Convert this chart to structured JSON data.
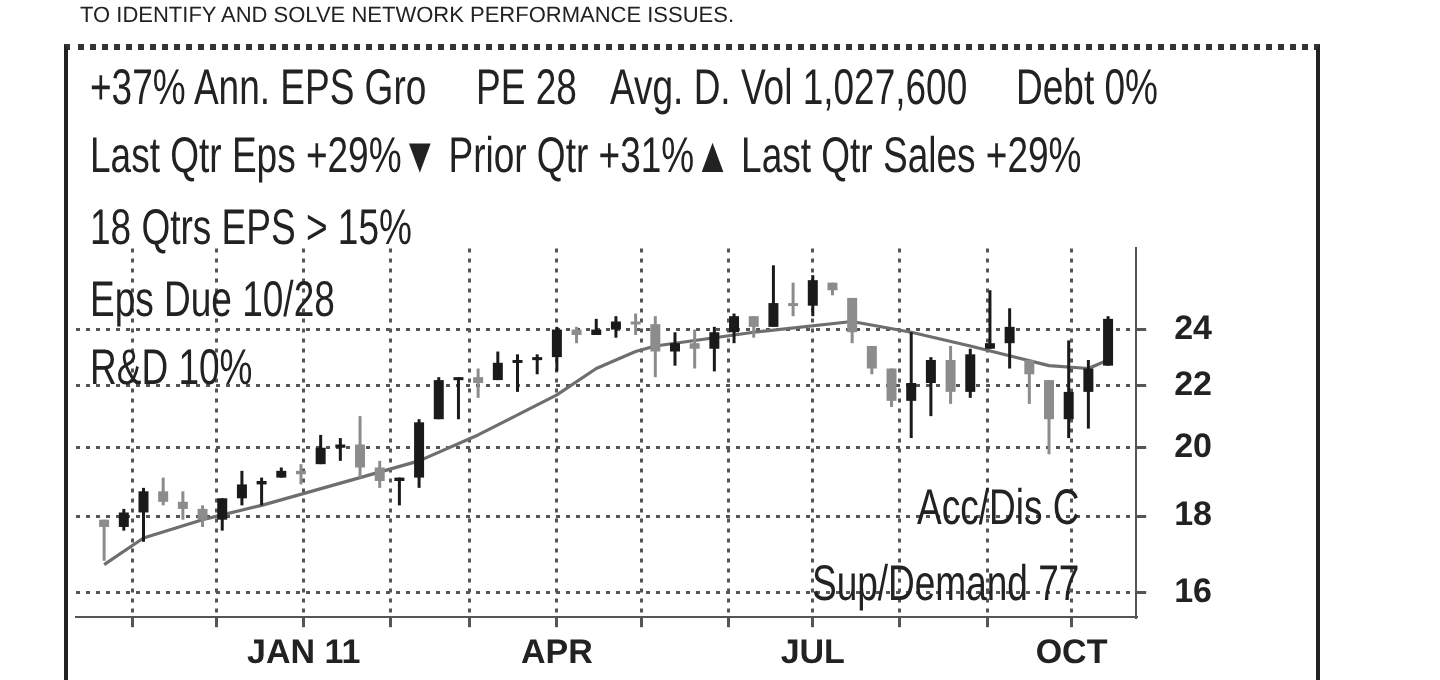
{
  "chart_data": {
    "type": "candlestick",
    "annotations": [
      "TO IDENTIFY AND SOLVE NETWORK PERFORMANCE ISSUES.",
      "+37% Ann. EPS Gro",
      "PE 28",
      "Avg. D. Vol 1,027,600",
      "Debt 0%",
      "Last Qtr Eps +29%▼ Prior Qtr +31%▲ Last Qtr Sales +29%",
      "18 Qtrs EPS > 15%",
      "Eps Due 10/28",
      "R&D 10%",
      "Acc/Dis C",
      "Sup/Demand 77"
    ],
    "x": [
      "2010-10-22",
      "2010-10-29",
      "2010-11-05",
      "2010-11-12",
      "2010-11-19",
      "2010-11-26",
      "2010-12-03",
      "2010-12-10",
      "2010-12-17",
      "2010-12-24",
      "2010-12-31",
      "2011-01-07",
      "2011-01-14",
      "2011-01-21",
      "2011-01-28",
      "2011-02-04",
      "2011-02-11",
      "2011-02-18",
      "2011-02-25",
      "2011-03-04",
      "2011-03-11",
      "2011-03-18",
      "2011-03-25",
      "2011-04-01",
      "2011-04-08",
      "2011-04-15",
      "2011-04-22",
      "2011-04-29",
      "2011-05-06",
      "2011-05-13",
      "2011-05-20",
      "2011-05-27",
      "2011-06-03",
      "2011-06-10",
      "2011-06-17",
      "2011-06-24",
      "2011-07-01",
      "2011-07-08",
      "2011-07-15",
      "2011-07-22",
      "2011-07-29",
      "2011-08-05",
      "2011-08-12",
      "2011-08-19",
      "2011-08-26",
      "2011-09-02",
      "2011-09-09",
      "2011-09-16",
      "2011-09-23",
      "2011-09-30",
      "2011-10-07",
      "2011-10-14"
    ],
    "ohlc": [
      [
        17.9,
        17.9,
        16.8,
        17.7
      ],
      [
        17.7,
        18.2,
        17.6,
        18.1
      ],
      [
        18.1,
        18.8,
        17.3,
        18.7
      ],
      [
        18.7,
        19.1,
        18.3,
        18.4
      ],
      [
        18.4,
        18.7,
        17.9,
        18.2
      ],
      [
        18.2,
        18.3,
        17.7,
        17.9
      ],
      [
        17.9,
        18.5,
        17.6,
        18.5
      ],
      [
        18.5,
        19.3,
        18.3,
        18.9
      ],
      [
        18.9,
        19.1,
        18.3,
        19.0
      ],
      [
        19.1,
        19.4,
        19.1,
        19.3
      ],
      [
        19.3,
        19.5,
        18.9,
        19.2
      ],
      [
        19.5,
        20.4,
        19.5,
        20.0
      ],
      [
        20.0,
        20.3,
        19.6,
        20.1
      ],
      [
        20.1,
        21.0,
        19.1,
        19.4
      ],
      [
        19.4,
        19.6,
        18.8,
        19.0
      ],
      [
        19.0,
        19.1,
        18.3,
        19.1
      ],
      [
        19.1,
        20.9,
        18.8,
        20.8
      ],
      [
        20.9,
        22.3,
        20.9,
        22.2
      ],
      [
        22.2,
        22.3,
        20.9,
        22.3
      ],
      [
        22.3,
        22.6,
        21.6,
        22.1
      ],
      [
        22.2,
        23.2,
        22.2,
        22.8
      ],
      [
        22.8,
        23.1,
        21.8,
        22.9
      ],
      [
        22.9,
        23.1,
        22.4,
        23.0
      ],
      [
        23.0,
        24.1,
        22.5,
        24.0
      ],
      [
        24.0,
        24.1,
        23.5,
        23.8
      ],
      [
        23.8,
        24.4,
        23.8,
        24.0
      ],
      [
        24.0,
        24.5,
        23.7,
        24.3
      ],
      [
        24.3,
        24.6,
        23.8,
        24.2
      ],
      [
        24.2,
        24.5,
        22.3,
        23.2
      ],
      [
        23.2,
        23.9,
        22.7,
        23.5
      ],
      [
        23.5,
        24.0,
        22.6,
        23.3
      ],
      [
        23.3,
        24.1,
        22.5,
        23.9
      ],
      [
        23.9,
        24.6,
        23.5,
        24.5
      ],
      [
        24.5,
        24.5,
        23.7,
        24.1
      ],
      [
        24.1,
        26.5,
        24.1,
        25.0
      ],
      [
        25.0,
        25.8,
        24.5,
        24.9
      ],
      [
        24.9,
        26.1,
        24.5,
        25.9
      ],
      [
        25.8,
        25.8,
        25.3,
        25.5
      ],
      [
        25.2,
        25.2,
        23.5,
        23.9
      ],
      [
        23.4,
        23.4,
        22.4,
        22.6
      ],
      [
        22.6,
        22.6,
        21.3,
        21.5
      ],
      [
        21.5,
        23.9,
        20.3,
        22.1
      ],
      [
        22.1,
        23.0,
        21.0,
        22.9
      ],
      [
        22.9,
        23.4,
        21.4,
        21.8
      ],
      [
        21.8,
        23.3,
        21.6,
        23.1
      ],
      [
        23.3,
        25.5,
        23.3,
        23.5
      ],
      [
        23.5,
        24.8,
        22.6,
        24.1
      ],
      [
        22.9,
        22.9,
        21.4,
        22.4
      ],
      [
        22.2,
        22.2,
        19.8,
        20.9
      ],
      [
        20.9,
        23.6,
        20.3,
        21.8
      ],
      [
        21.8,
        22.9,
        20.6,
        22.6
      ],
      [
        22.7,
        24.5,
        22.7,
        24.4
      ]
    ],
    "colors": [
      "#8c8c8c",
      "#1a1a1a",
      "#1a1a1a",
      "#8c8c8c",
      "#8c8c8c",
      "#8c8c8c",
      "#1a1a1a",
      "#1a1a1a",
      "#1a1a1a",
      "#1a1a1a",
      "#8c8c8c",
      "#1a1a1a",
      "#1a1a1a",
      "#8c8c8c",
      "#8c8c8c",
      "#1a1a1a",
      "#1a1a1a",
      "#1a1a1a",
      "#1a1a1a",
      "#8c8c8c",
      "#1a1a1a",
      "#1a1a1a",
      "#1a1a1a",
      "#1a1a1a",
      "#8c8c8c",
      "#1a1a1a",
      "#1a1a1a",
      "#8c8c8c",
      "#8c8c8c",
      "#1a1a1a",
      "#8c8c8c",
      "#1a1a1a",
      "#1a1a1a",
      "#8c8c8c",
      "#1a1a1a",
      "#8c8c8c",
      "#1a1a1a",
      "#8c8c8c",
      "#8c8c8c",
      "#8c8c8c",
      "#8c8c8c",
      "#1a1a1a",
      "#1a1a1a",
      "#8c8c8c",
      "#1a1a1a",
      "#1a1a1a",
      "#1a1a1a",
      "#8c8c8c",
      "#8c8c8c",
      "#1a1a1a",
      "#1a1a1a",
      "#1a1a1a"
    ],
    "series": [
      {
        "type": "line",
        "color": "#6e6e6e",
        "x": [
          "2010-10-22",
          "2010-11-05",
          "2010-11-26",
          "2010-12-17",
          "2011-01-21",
          "2011-02-11",
          "2011-03-04",
          "2011-04-01",
          "2011-04-15",
          "2011-04-29",
          "2011-05-06",
          "2011-06-10",
          "2011-07-15",
          "2011-08-05",
          "2011-08-26",
          "2011-09-23",
          "2011-10-07",
          "2011-10-14"
        ],
        "values": [
          16.7,
          17.4,
          17.9,
          18.3,
          19.1,
          19.6,
          20.4,
          21.7,
          22.6,
          23.2,
          23.4,
          23.9,
          24.3,
          23.9,
          23.4,
          22.7,
          22.6,
          22.9
        ]
      }
    ],
    "xlim": [
      "2010-10-12",
      "2011-10-24"
    ],
    "xticks": [
      {
        "value": "2010-11-01",
        "label": null
      },
      {
        "value": "2010-12-01",
        "label": null
      },
      {
        "value": "2011-01-01",
        "label": "JAN 11"
      },
      {
        "value": "2011-02-01",
        "label": null
      },
      {
        "value": "2011-03-01",
        "label": null
      },
      {
        "value": "2011-04-01",
        "label": "APR"
      },
      {
        "value": "2011-05-01",
        "label": null
      },
      {
        "value": "2011-06-01",
        "label": null
      },
      {
        "value": "2011-07-01",
        "label": "JUL"
      },
      {
        "value": "2011-08-01",
        "label": null
      },
      {
        "value": "2011-09-01",
        "label": null
      },
      {
        "value": "2011-10-01",
        "label": "OCT"
      }
    ],
    "ylim": [
      15.4,
      27.2
    ],
    "yticks": [
      16,
      18,
      20,
      22,
      24
    ],
    "log": true,
    "grid": true
  }
}
